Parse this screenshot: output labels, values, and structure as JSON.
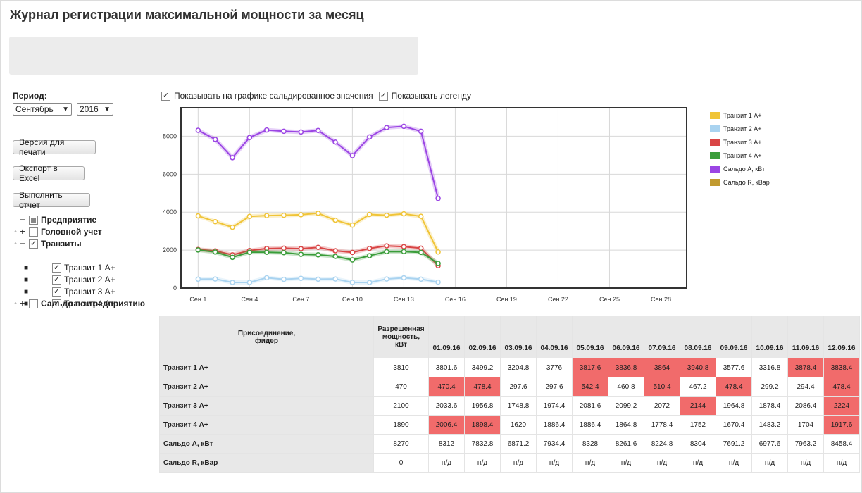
{
  "page": {
    "title": "Журнал регистрации максимальной мощности за месяц"
  },
  "period": {
    "label": "Период:",
    "month": "Сентябрь",
    "year": "2016"
  },
  "buttons": {
    "print": "Версия для печати",
    "excel": "Экспорт в Excel",
    "run": "Выполнить отчет"
  },
  "tree": {
    "root": "Предприятие",
    "head": "Головной учет",
    "transits": "Транзиты",
    "t1": "Транзит 1 А+",
    "t2": "Транзит 2 А+",
    "t3": "Транзит 3 А+",
    "t4": "Транзит 4 А+",
    "saldo": "Сальдо по предприятию"
  },
  "options": {
    "show_saldo": "Показывать на графике сальдированное значения",
    "show_legend": "Показывать легенду"
  },
  "chart_data": {
    "type": "line",
    "x_ticks": [
      "Сен 1",
      "Сен 4",
      "Сен 7",
      "Сен 10",
      "Сен 13",
      "Сен 16",
      "Сен 19",
      "Сен 22",
      "Сен 25",
      "Сен 28"
    ],
    "y_ticks": [
      "0",
      "2000",
      "4000",
      "6000",
      "8000"
    ],
    "ylim": [
      0,
      9500
    ],
    "x_days": [
      1,
      2,
      3,
      4,
      5,
      6,
      7,
      8,
      9,
      10,
      11,
      12,
      13,
      14,
      15
    ],
    "series": [
      {
        "name": "Транзит 1 А+",
        "color": "#f0c437",
        "values": [
          3801.6,
          3499.2,
          3204.8,
          3776,
          3817.6,
          3836.8,
          3864,
          3940.8,
          3577.6,
          3316.8,
          3878.4,
          3838.4,
          3910,
          3780,
          1900
        ]
      },
      {
        "name": "Транзит 2 А+",
        "color": "#a9d3f0",
        "values": [
          470.4,
          478.4,
          297.6,
          297.6,
          542.4,
          460.8,
          510.4,
          467.2,
          478.4,
          299.2,
          294.4,
          478.4,
          540,
          470,
          310
        ]
      },
      {
        "name": "Транзит 3 А+",
        "color": "#d94545",
        "values": [
          2033.6,
          1956.8,
          1748.8,
          1974.4,
          2081.6,
          2099.2,
          2072,
          2144,
          1964.8,
          1878.4,
          2086.4,
          2224,
          2180,
          2100,
          1180
        ]
      },
      {
        "name": "Транзит 4 А+",
        "color": "#3a9d3a",
        "values": [
          2006.4,
          1898.4,
          1620,
          1886.4,
          1886.4,
          1864.8,
          1778.4,
          1752,
          1670.4,
          1483.2,
          1704,
          1917.6,
          1920,
          1880,
          1300
        ]
      },
      {
        "name": "Сальдо А, кВт",
        "color": "#9b45e4",
        "values": [
          8312,
          7832.8,
          6871.2,
          7934.4,
          8328,
          8261.6,
          8224.8,
          8304,
          7691.2,
          6977.6,
          7963.2,
          8458.4,
          8520,
          8260,
          4720
        ]
      },
      {
        "name": "Сальдо R, кВар",
        "color": "#c19a30",
        "values": []
      }
    ]
  },
  "table": {
    "header_name": "Присоединение, фидер",
    "header_allowed": "Разрешенная мощность, кВт",
    "dates": [
      "01.09.16",
      "02.09.16",
      "03.09.16",
      "04.09.16",
      "05.09.16",
      "06.09.16",
      "07.09.16",
      "08.09.16",
      "09.09.16",
      "10.09.16",
      "11.09.16",
      "12.09.16"
    ],
    "rows": [
      {
        "name": "Транзит 1 А+",
        "allowed": "3810",
        "cells": [
          "3801.6",
          "3499.2",
          "3204.8",
          "3776",
          "3817.6",
          "3836.8",
          "3864",
          "3940.8",
          "3577.6",
          "3316.8",
          "3878.4",
          "3838.4"
        ],
        "over": [
          false,
          false,
          false,
          false,
          true,
          true,
          true,
          true,
          false,
          false,
          true,
          true
        ]
      },
      {
        "name": "Транзит 2 А+",
        "allowed": "470",
        "cells": [
          "470.4",
          "478.4",
          "297.6",
          "297.6",
          "542.4",
          "460.8",
          "510.4",
          "467.2",
          "478.4",
          "299.2",
          "294.4",
          "478.4"
        ],
        "over": [
          true,
          true,
          false,
          false,
          true,
          false,
          true,
          false,
          true,
          false,
          false,
          true
        ]
      },
      {
        "name": "Транзит 3 А+",
        "allowed": "2100",
        "cells": [
          "2033.6",
          "1956.8",
          "1748.8",
          "1974.4",
          "2081.6",
          "2099.2",
          "2072",
          "2144",
          "1964.8",
          "1878.4",
          "2086.4",
          "2224"
        ],
        "over": [
          false,
          false,
          false,
          false,
          false,
          false,
          false,
          true,
          false,
          false,
          false,
          true
        ]
      },
      {
        "name": "Транзит 4 А+",
        "allowed": "1890",
        "cells": [
          "2006.4",
          "1898.4",
          "1620",
          "1886.4",
          "1886.4",
          "1864.8",
          "1778.4",
          "1752",
          "1670.4",
          "1483.2",
          "1704",
          "1917.6"
        ],
        "over": [
          true,
          true,
          false,
          false,
          false,
          false,
          false,
          false,
          false,
          false,
          false,
          true
        ]
      },
      {
        "name": "Сальдо А, кВт",
        "allowed": "8270",
        "cells": [
          "8312",
          "7832.8",
          "6871.2",
          "7934.4",
          "8328",
          "8261.6",
          "8224.8",
          "8304",
          "7691.2",
          "6977.6",
          "7963.2",
          "8458.4"
        ],
        "over": [
          false,
          false,
          false,
          false,
          false,
          false,
          false,
          false,
          false,
          false,
          false,
          false
        ]
      },
      {
        "name": "Сальдо R, кВар",
        "allowed": "0",
        "cells": [
          "н/д",
          "н/д",
          "н/д",
          "н/д",
          "н/д",
          "н/д",
          "н/д",
          "н/д",
          "н/д",
          "н/д",
          "н/д",
          "н/д"
        ],
        "over": [
          false,
          false,
          false,
          false,
          false,
          false,
          false,
          false,
          false,
          false,
          false,
          false
        ]
      }
    ]
  }
}
